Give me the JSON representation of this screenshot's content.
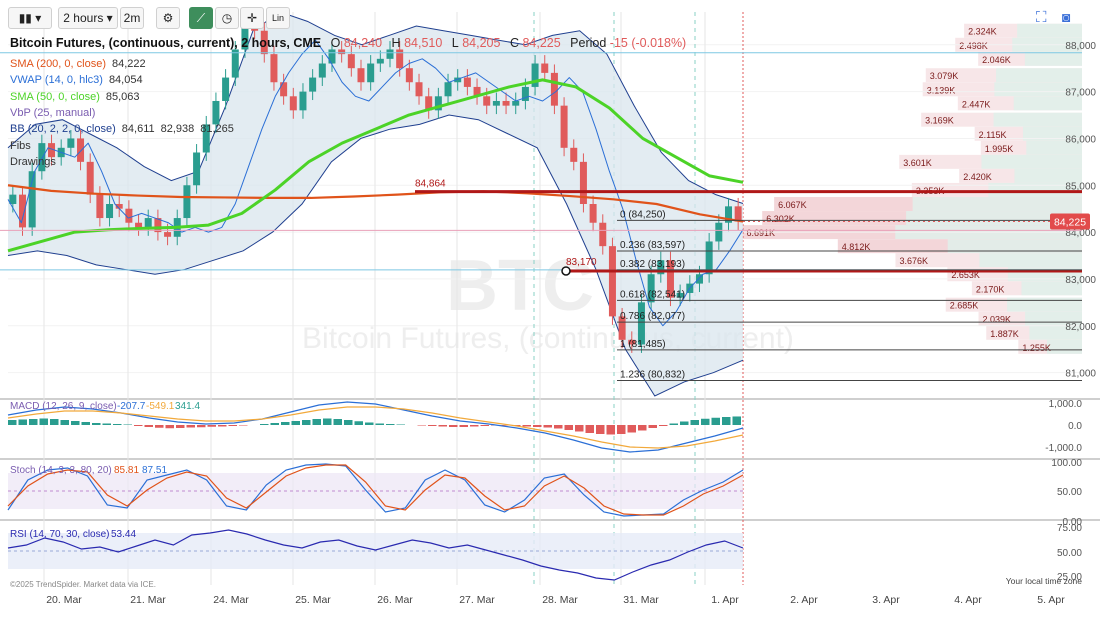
{
  "toolbar": {
    "interval": "2 hours",
    "sub_interval": "2m",
    "scale_button": "Lin"
  },
  "header": {
    "symbol_title": "Bitcoin Futures, (continuous, current), 2 hours, CME",
    "open_label": "O",
    "open": "84,240",
    "high_label": "H",
    "high": "84,510",
    "low_label": "L",
    "low": "84,205",
    "close_label": "C",
    "close": "84,225",
    "period_label": "Period",
    "period_change": "-15 (-0.018%)"
  },
  "legends": [
    {
      "label": "SMA (200, 0, close)",
      "values": [
        "84,222"
      ],
      "color": "#e0531a"
    },
    {
      "label": "VWAP (14, 0, hlc3)",
      "values": [
        "84,054"
      ],
      "color": "#2b6fd6"
    },
    {
      "label": "SMA (50, 0, close)",
      "values": [
        "85,063"
      ],
      "color": "#4cd327"
    },
    {
      "label": "VbP (25, manual)",
      "values": [],
      "color": "#7a5cb0"
    },
    {
      "label": "BB (20, 2, 2, 0, close)",
      "values": [
        "84,611",
        "82,938",
        "81,265"
      ],
      "color": "#1f3f8f"
    },
    {
      "label": "Fibs",
      "values": [],
      "color": "#333333"
    },
    {
      "label": "Drawings",
      "values": [],
      "color": "#333333"
    }
  ],
  "watermark": {
    "symbol": "BTC",
    "name": "Bitcoin Futures, (continuous, current)"
  },
  "chart_data": {
    "type": "line",
    "title": "Bitcoin Futures, (continuous, current), 2 hours, CME",
    "x_ticks": [
      "20. Mar",
      "21. Mar",
      "24. Mar",
      "25. Mar",
      "26. Mar",
      "27. Mar",
      "28. Mar",
      "31. Mar",
      "1. Apr",
      "2. Apr",
      "3. Apr",
      "4. Apr",
      "5. Apr"
    ],
    "y_ticks": [
      "88,000",
      "87,000",
      "86,000",
      "85,000",
      "84,000",
      "83,000",
      "82,000",
      "81,000"
    ],
    "ylim": [
      80500,
      88700
    ],
    "closes": [
      84800,
      84100,
      85300,
      85900,
      85600,
      85800,
      86000,
      85500,
      84800,
      84300,
      84600,
      84500,
      84200,
      84100,
      84300,
      84000,
      83900,
      84300,
      85000,
      85700,
      86300,
      86800,
      87300,
      87900,
      88400,
      88300,
      87800,
      87200,
      86900,
      86600,
      87000,
      87300,
      87600,
      87900,
      87800,
      87500,
      87200,
      87600,
      87700,
      87900,
      87500,
      87200,
      86900,
      86600,
      86900,
      87200,
      87300,
      87100,
      86900,
      86700,
      86800,
      86700,
      86800,
      87100,
      87600,
      87400,
      86700,
      85800,
      85500,
      84600,
      84200,
      83700,
      82200,
      81700,
      81600,
      82500,
      83100,
      83400,
      82600,
      82700,
      82900,
      83100,
      83800,
      84200,
      84550,
      84225
    ],
    "series": [
      {
        "name": "SMA (200, 0, close)",
        "values": [
          85000,
          84880,
          84820,
          84780,
          84750,
          84740,
          84730,
          84730,
          84760,
          84800,
          84850,
          84870,
          84830,
          84770,
          84700,
          84600,
          84380,
          84225
        ]
      },
      {
        "name": "SMA (50, 0, close)",
        "values": [
          83600,
          83800,
          84000,
          84050,
          84080,
          84100,
          84150,
          84400,
          84900,
          85500,
          85900,
          86200,
          86500,
          86700,
          86900,
          87100,
          87250,
          87100,
          86650,
          86000,
          85600,
          85200,
          85063
        ]
      },
      {
        "name": "VWAP (14, 0, hlc3)",
        "values": [
          84700,
          84200,
          85300,
          85800,
          85700,
          85600,
          85900,
          85300,
          84600,
          84300,
          84400,
          84300,
          84200,
          84000,
          84100,
          84000,
          84100,
          84600,
          85400,
          86200,
          86900,
          87400,
          87800,
          88100,
          87700,
          87200,
          86900,
          86800,
          87100,
          87400,
          87600,
          87700,
          87500,
          87200,
          87300,
          87400,
          87200,
          87000,
          86800,
          86900,
          86800,
          87000,
          87300,
          87000,
          86200,
          85300,
          84500,
          83400,
          82400,
          82000,
          82300,
          82800,
          83100,
          83200,
          83600,
          84054
        ]
      },
      {
        "name": "BB upper",
        "values": [
          85800,
          86300,
          86400,
          86100,
          85800,
          85400,
          85100,
          85300,
          86700,
          88300,
          88700,
          88500,
          88200,
          88000,
          88200,
          88400,
          88300,
          88200,
          88100,
          88000,
          88200,
          88300,
          87800,
          86700,
          85700,
          85100,
          84800,
          84611
        ]
      },
      {
        "name": "BB lower",
        "values": [
          83500,
          83600,
          83500,
          83300,
          83200,
          83100,
          83200,
          83400,
          83600,
          84000,
          84600,
          85500,
          86000,
          86200,
          86300,
          86500,
          86400,
          86100,
          85800,
          84600,
          83200,
          81500,
          80500,
          80800,
          81000,
          81265
        ]
      }
    ],
    "levels": [
      {
        "label": "84,864",
        "value": 84864
      },
      {
        "label": "83,170",
        "value": 83170
      }
    ],
    "fibs": [
      {
        "label": "0 (84,250)",
        "value": 84250
      },
      {
        "label": "0.236 (83,597)",
        "value": 83597
      },
      {
        "label": "0.382 (83,193)",
        "value": 83193
      },
      {
        "label": "0.618 (82,541)",
        "value": 82541
      },
      {
        "label": "0.786 (82,077)",
        "value": 82077
      },
      {
        "label": "1 (81,485)",
        "value": 81485
      },
      {
        "label": "1.236 (80,832)",
        "value": 80832
      }
    ],
    "last_price": "84,225",
    "volume_profile": [
      {
        "label": "2.324K",
        "price": 88300
      },
      {
        "label": "2.498K",
        "price": 88000
      },
      {
        "label": "2.046K",
        "price": 87700
      },
      {
        "label": "3.079K",
        "price": 87350
      },
      {
        "label": "3.139K",
        "price": 87050
      },
      {
        "label": "2.447K",
        "price": 86750
      },
      {
        "label": "3.169K",
        "price": 86400
      },
      {
        "label": "2.115K",
        "price": 86100
      },
      {
        "label": "1.995K",
        "price": 85800
      },
      {
        "label": "3.601K",
        "price": 85500
      },
      {
        "label": "2.420K",
        "price": 85200
      },
      {
        "label": "3.353K",
        "price": 84900
      },
      {
        "label": "6.067K",
        "price": 84600
      },
      {
        "label": "6.302K",
        "price": 84300
      },
      {
        "label": "6.691K",
        "price": 84000
      },
      {
        "label": "4.812K",
        "price": 83700
      },
      {
        "label": "3.676K",
        "price": 83400
      },
      {
        "label": "2.653K",
        "price": 83100
      },
      {
        "label": "2.170K",
        "price": 82800
      },
      {
        "label": "2.685K",
        "price": 82450
      },
      {
        "label": "2.039K",
        "price": 82150
      },
      {
        "label": "1.887K",
        "price": 81850
      },
      {
        "label": "1.255K",
        "price": 81550
      }
    ]
  },
  "indicators": {
    "macd": {
      "label": "MACD (12, 26, 9, close)",
      "values": [
        "-207.7",
        "-549.1",
        "341.4"
      ],
      "y_ticks": [
        "1,000.0",
        "0.0",
        "-1,000.0"
      ],
      "hist": [
        200,
        220,
        240,
        260,
        240,
        200,
        160,
        120,
        80,
        60,
        40,
        20,
        -40,
        -80,
        -110,
        -130,
        -120,
        -100,
        -90,
        -70,
        -60,
        -40,
        -20,
        0,
        40,
        80,
        120,
        160,
        200,
        240,
        260,
        240,
        200,
        150,
        100,
        60,
        40,
        20,
        0,
        -20,
        -40,
        -60,
        -80,
        -80,
        -60,
        -40,
        -20,
        -20,
        -40,
        -60,
        -80,
        -100,
        -140,
        -200,
        -260,
        -320,
        -360,
        -380,
        -360,
        -300,
        -220,
        -120,
        -40,
        60,
        140,
        200,
        250,
        290,
        320,
        341
      ]
    },
    "stoch": {
      "label": "Stoch (14, 3, 3, 80, 20)",
      "values": [
        "85.81",
        "87.51"
      ],
      "y_ticks": [
        "100.00",
        "50.00",
        "0.00"
      ]
    },
    "rsi": {
      "label": "RSI (14, 70, 30, close)",
      "values": [
        "53.44"
      ],
      "y_ticks": [
        "75.00",
        "50.00",
        "25.00"
      ]
    }
  },
  "footer": {
    "copyright": "©2025 TrendSpider. Market data via ICE.",
    "timezone": "Your local time zone"
  },
  "colors": {
    "up": "#2a9d8f",
    "down": "#e05b5b",
    "sma200": "#e0531a",
    "sma50": "#4cd327",
    "vwap": "#2b6fd6",
    "bb": "#1f3f8f",
    "level": "#b01818"
  }
}
